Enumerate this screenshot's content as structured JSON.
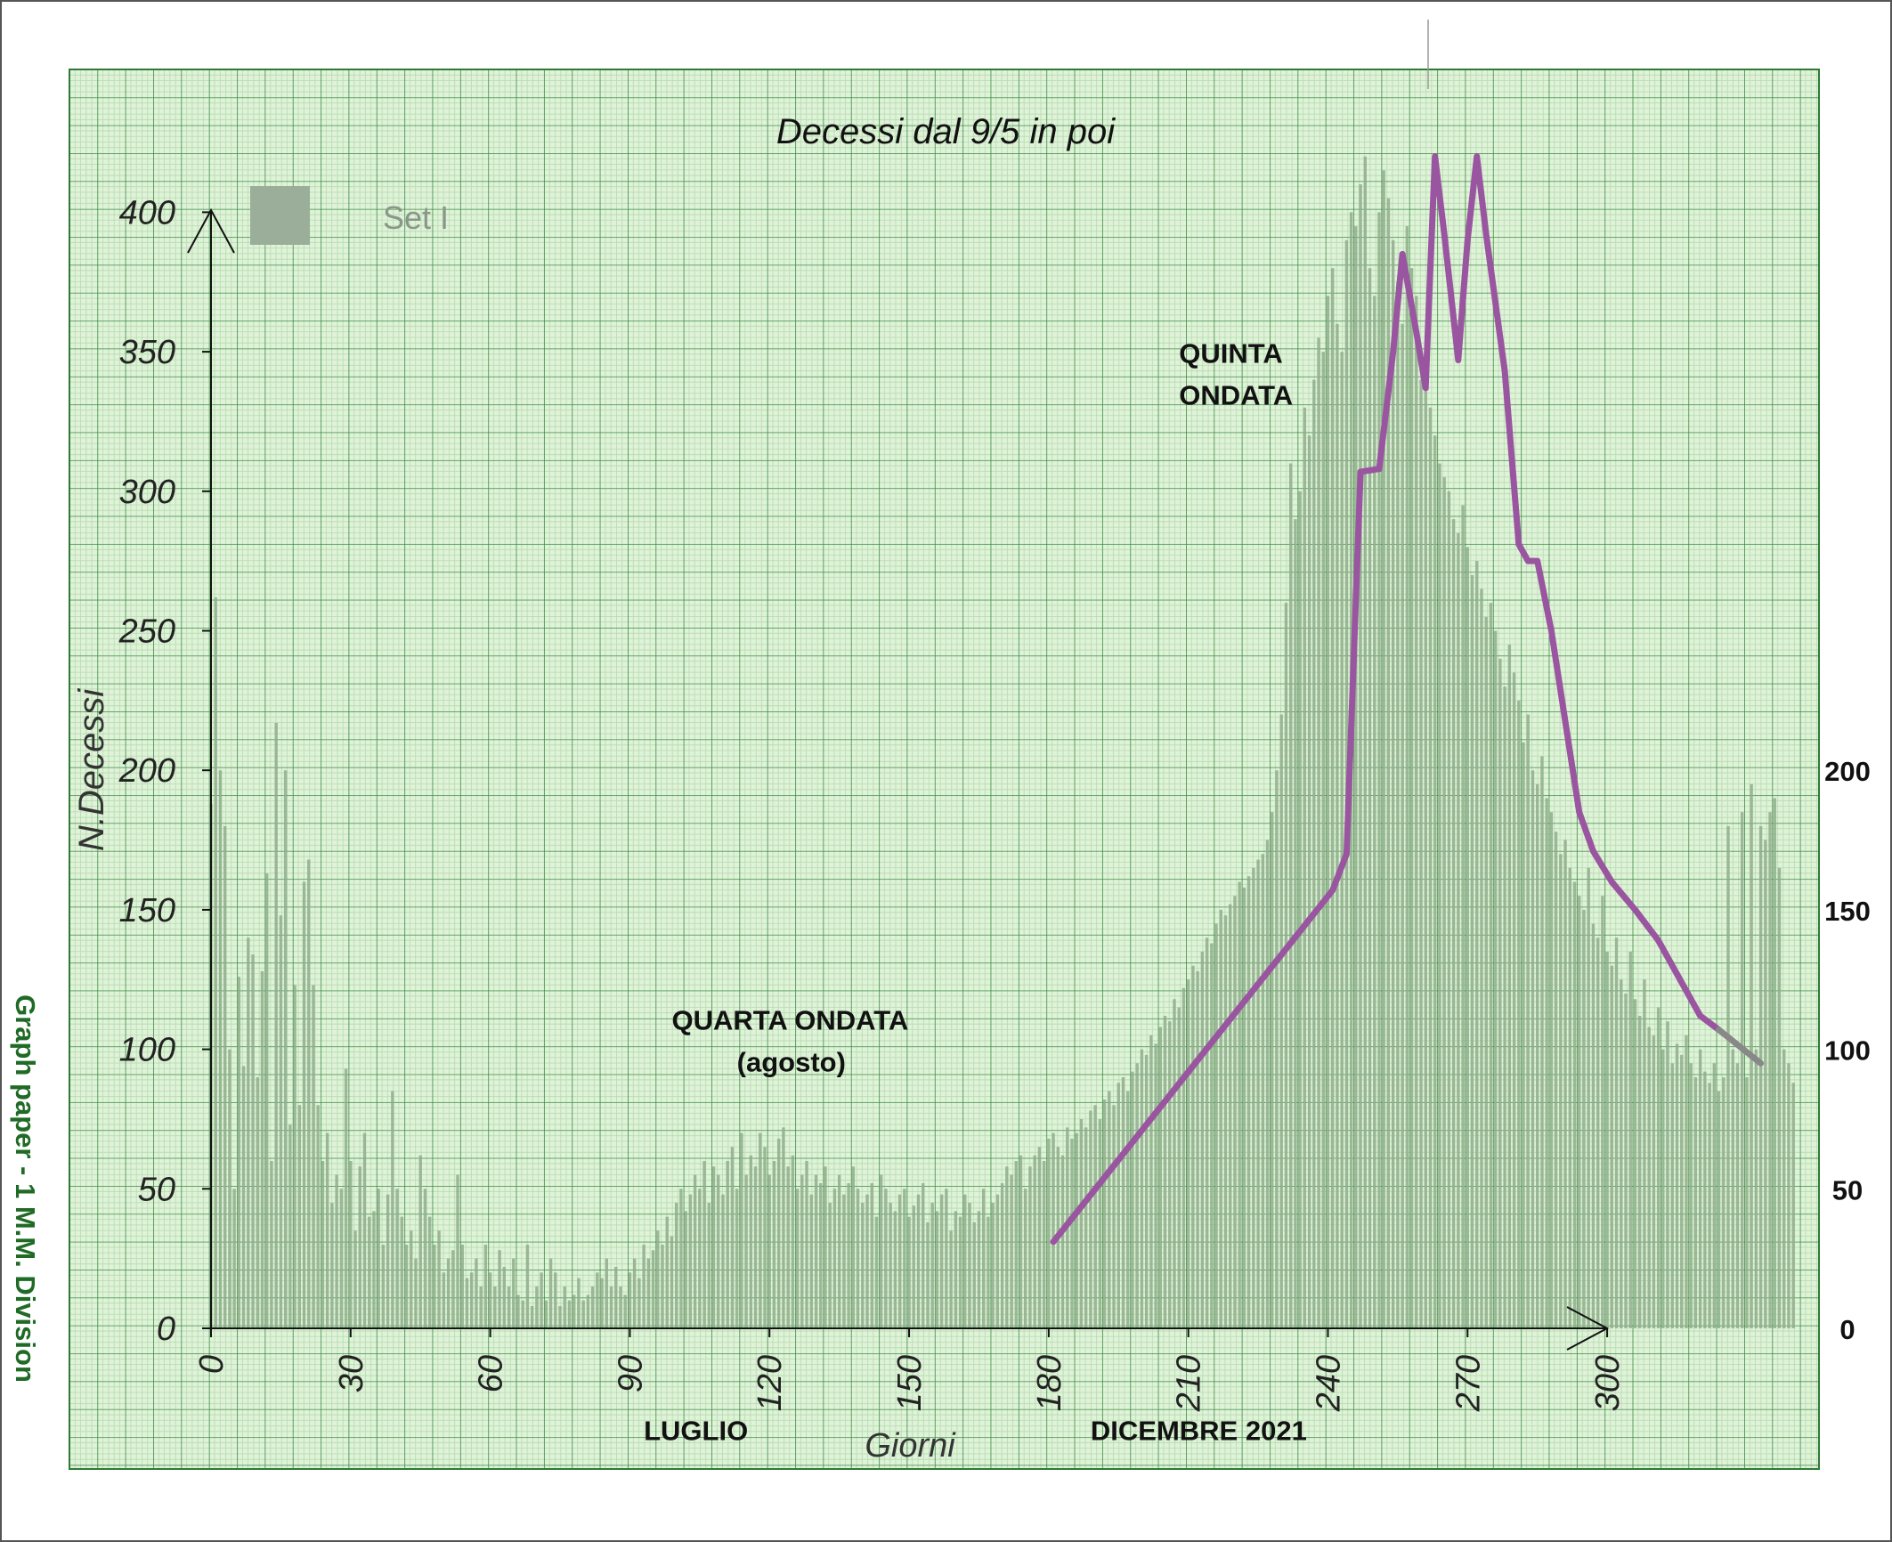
{
  "chart_data": {
    "type": "bar",
    "title": "Decessi dal 9/5 in poi",
    "xlabel": "Giorni",
    "ylabel": "N.Decessi",
    "legend": {
      "entries": [
        "Set I"
      ],
      "position": "top-left",
      "color": "#9aae9a"
    },
    "xlim": [
      0,
      345
    ],
    "ylim": [
      0,
      420
    ],
    "x_ticks": [
      "0",
      "30",
      "60",
      "90",
      "120",
      "150",
      "180",
      "210",
      "240",
      "270",
      "300"
    ],
    "y_ticks": [
      "0",
      "50",
      "100",
      "150",
      "200",
      "250",
      "300",
      "350",
      "400"
    ],
    "right_axis_ticks": [
      "0",
      "50",
      "100",
      "150",
      "200"
    ],
    "grid": true,
    "bar_color": "#8fad8c",
    "series": [
      {
        "values": [
          188,
          262,
          200,
          180,
          100,
          50,
          126,
          94,
          140,
          134,
          90,
          128,
          163,
          60,
          217,
          148,
          200,
          73,
          123,
          80,
          160,
          168,
          123,
          80,
          60,
          70,
          45,
          55,
          50,
          93,
          60,
          35,
          58,
          70,
          40,
          42,
          50,
          30,
          48,
          85,
          50,
          40,
          30,
          35,
          25,
          62,
          50,
          40,
          30,
          35,
          20,
          25,
          28,
          55,
          30,
          18,
          20,
          25,
          15,
          30,
          20,
          15,
          28,
          22,
          15,
          25,
          12,
          10,
          30,
          8,
          15,
          20,
          10,
          25,
          20,
          8,
          15,
          10,
          12,
          18,
          10,
          12,
          15,
          20,
          18,
          25,
          15,
          22,
          15,
          12,
          20,
          25,
          18,
          30,
          25,
          28,
          35,
          30,
          40,
          33,
          45,
          50,
          42,
          48,
          55,
          50,
          60,
          45,
          58,
          55,
          48,
          60,
          65,
          50,
          70,
          55,
          62,
          58,
          70,
          65,
          55,
          60,
          68,
          72,
          58,
          62,
          50,
          55,
          60,
          48,
          55,
          52,
          58,
          45,
          50,
          55,
          48,
          52,
          58,
          50,
          45,
          48,
          52,
          40,
          55,
          50,
          45,
          42,
          48,
          50,
          40,
          44,
          48,
          52,
          38,
          45,
          42,
          48,
          50,
          35,
          42,
          40,
          48,
          45,
          38,
          42,
          50,
          40,
          45,
          48,
          52,
          58,
          55,
          60,
          62,
          50,
          58,
          62,
          65,
          60,
          68,
          70,
          65,
          62,
          72,
          68,
          70,
          75,
          72,
          78,
          80,
          75,
          82,
          85,
          80,
          88,
          90,
          85,
          92,
          95,
          100,
          98,
          105,
          102,
          108,
          112,
          110,
          118,
          115,
          122,
          125,
          130,
          128,
          135,
          140,
          138,
          145,
          150,
          148,
          152,
          155,
          160,
          158,
          162,
          165,
          168,
          170,
          175,
          185,
          200,
          220,
          260,
          310,
          290,
          300,
          330,
          320,
          340,
          355,
          350,
          370,
          380,
          360,
          350,
          390,
          400,
          395,
          410,
          420,
          380,
          370,
          400,
          415,
          405,
          390,
          375,
          360,
          395,
          380,
          370,
          340,
          350,
          330,
          320,
          310,
          305,
          300,
          290,
          285,
          295,
          280,
          270,
          275,
          265,
          255,
          260,
          250,
          240,
          230,
          245,
          235,
          225,
          210,
          220,
          200,
          195,
          205,
          190,
          185,
          178,
          170,
          175,
          165,
          160,
          155,
          150,
          165,
          145,
          140,
          155,
          135,
          130,
          140,
          125,
          120,
          135,
          118,
          112,
          125,
          108,
          105,
          115,
          100,
          110,
          95,
          102,
          98,
          105,
          95,
          90,
          100,
          92,
          88,
          95,
          85,
          90,
          180,
          100,
          95,
          185,
          90,
          195,
          100,
          180,
          175,
          185,
          190,
          165,
          100,
          95,
          88
        ]
      }
    ],
    "trend_line": {
      "color": "#9a55a0",
      "points": [
        [
          181,
          31
        ],
        [
          241,
          157
        ],
        [
          244,
          170
        ],
        [
          247,
          307
        ],
        [
          251,
          308
        ],
        [
          254,
          350
        ],
        [
          256,
          385
        ],
        [
          259,
          357
        ],
        [
          261,
          337
        ],
        [
          262,
          380
        ],
        [
          263,
          420
        ],
        [
          265,
          392
        ],
        [
          268,
          347
        ],
        [
          270,
          390
        ],
        [
          272,
          420
        ],
        [
          274,
          392
        ],
        [
          278,
          343
        ],
        [
          281,
          281
        ],
        [
          283,
          275
        ],
        [
          285,
          275
        ],
        [
          288,
          250
        ],
        [
          294,
          185
        ],
        [
          297,
          171
        ],
        [
          301,
          160
        ],
        [
          306,
          150
        ],
        [
          311,
          139
        ],
        [
          316,
          124
        ],
        [
          320,
          112
        ],
        [
          324,
          107
        ]
      ],
      "tail_color": "#888888",
      "tail": [
        [
          324,
          107
        ],
        [
          333,
          95
        ]
      ]
    },
    "annotations": [
      {
        "text": "QUINTA",
        "x": 208,
        "y": 346
      },
      {
        "text": "ONDATA",
        "x": 208,
        "y": 331
      },
      {
        "text": "QUARTA ONDATA",
        "x": 99,
        "y": 107
      },
      {
        "text": "(agosto)",
        "x": 113,
        "y": 92
      },
      {
        "text": "LUGLIO",
        "x": 93,
        "y": -40
      },
      {
        "text": "DICEMBRE 2021",
        "x": 189,
        "y": -40
      }
    ],
    "side_label": "Graph paper - 1 M.M. Division"
  }
}
